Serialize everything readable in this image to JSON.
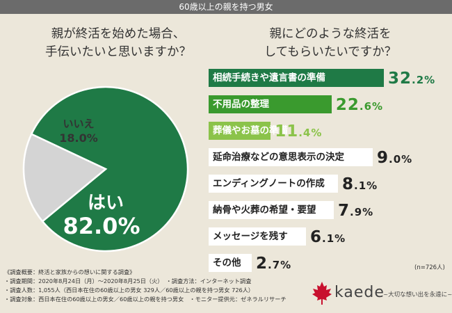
{
  "banner": "60歳以上の親を持つ男女",
  "question_left": [
    "親が終活を始めた場合、",
    "手伝いたいと思いますか？"
  ],
  "question_right": [
    "親にどのような終活を",
    "してもらいたいですか？"
  ],
  "chart_data": [
    {
      "type": "pie",
      "slices": [
        {
          "label": "はい",
          "value": 82.0,
          "value_label": "82.0%",
          "color": "#1f7a46"
        },
        {
          "label": "いいえ",
          "value": 18.0,
          "value_label": "18.0%",
          "color": "#d4d4d4"
        }
      ]
    },
    {
      "type": "bar",
      "orientation": "horizontal",
      "sample_size": "(n=726人)",
      "bars": [
        {
          "label": "相続手続きや遺言書の準備",
          "value": 32.2,
          "value_label": "32.2%",
          "style": "dark"
        },
        {
          "label": "不用品の整理",
          "value": 22.6,
          "value_label": "22.6%",
          "style": "mid"
        },
        {
          "label": "葬儀やお墓の準備",
          "value": 11.4,
          "value_label": "11.4%",
          "style": "light"
        },
        {
          "label": "延命治療などの意思表示の決定",
          "value": 9.0,
          "value_label": "9.0%",
          "style": "white"
        },
        {
          "label": "エンディングノートの作成",
          "value": 8.1,
          "value_label": "8.1%",
          "style": "white"
        },
        {
          "label": "納骨や火葬の希望・要望",
          "value": 7.9,
          "value_label": "7.9%",
          "style": "white"
        },
        {
          "label": "メッセージを残す",
          "value": 6.1,
          "value_label": "6.1%",
          "style": "white"
        },
        {
          "label": "その他",
          "value": 2.7,
          "value_label": "2.7%",
          "style": "white"
        }
      ]
    }
  ],
  "colors": {
    "dark_green": "#1f7a46",
    "mid_green": "#3a9a2e",
    "light_green": "#8bc34a",
    "maple_red": "#c8102e"
  },
  "notes": {
    "title": "《調査概要：終活と家族からの想いに関する調査》",
    "period": "・調査期間：2020年8月24日（月）～2020年8月25日（火）　・調査方法：インターネット調査",
    "people": "・調査人数：1,055人（西日本在住の60歳以上の男女 329人／60歳以上の親を持つ男女 726人）",
    "target": "・調査対象：西日本在住の60歳以上の男女／60歳以上の親を持つ男女　・モニター提供元：ゼネラルリサーチ"
  },
  "logo": {
    "icon": "maple-leaf-icon",
    "word": "kaede",
    "tagline": "~大切な想い出を永遠に~"
  }
}
